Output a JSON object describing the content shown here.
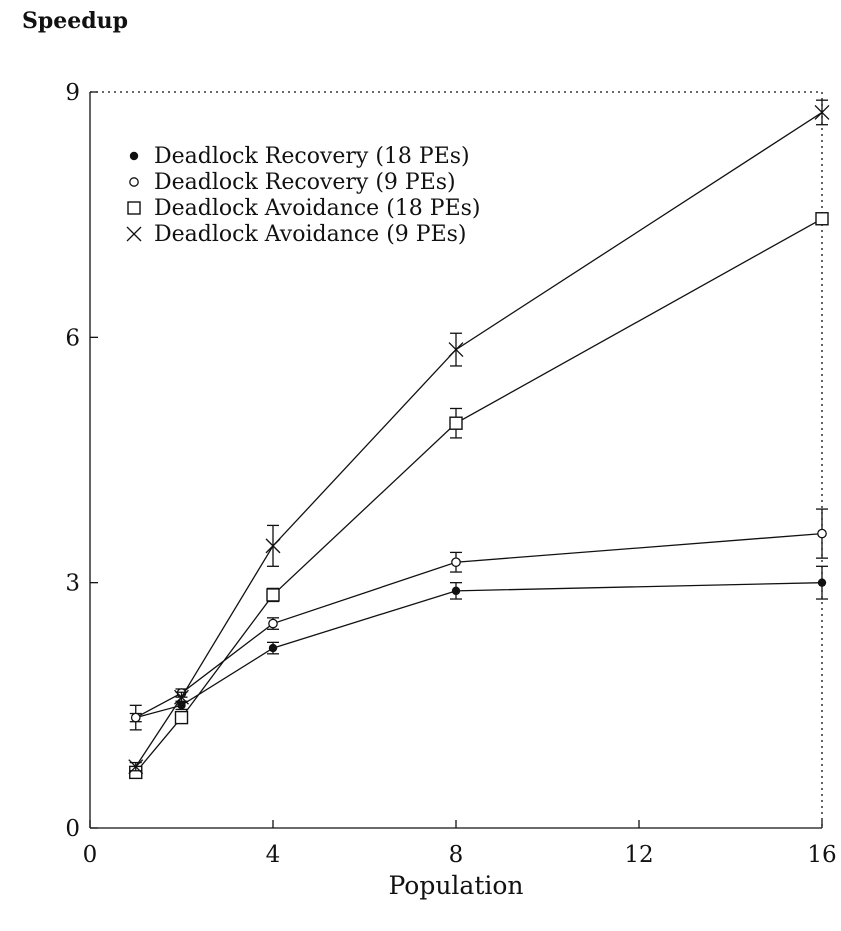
{
  "chart_data": {
    "type": "line",
    "title": "",
    "xlabel": "Population",
    "ylabel": "Speedup",
    "xlim": [
      0,
      16
    ],
    "ylim": [
      0,
      9
    ],
    "xticks": [
      0,
      4,
      8,
      12,
      16
    ],
    "yticks": [
      0,
      3,
      6,
      9
    ],
    "x": [
      1,
      2,
      4,
      8,
      16
    ],
    "legend_position": "top-left",
    "grid": false,
    "series": [
      {
        "name": "Deadlock Recovery (18 PEs)",
        "marker": "filled-circle",
        "x": [
          1,
          2,
          4,
          8,
          16
        ],
        "values": [
          1.35,
          1.5,
          2.2,
          2.9,
          3.0
        ],
        "err": [
          0.05,
          0.05,
          0.07,
          0.1,
          0.2
        ]
      },
      {
        "name": "Deadlock Recovery (9 PEs)",
        "marker": "open-circle",
        "x": [
          1,
          2,
          4,
          8,
          16
        ],
        "values": [
          1.35,
          1.65,
          2.5,
          3.25,
          3.6
        ],
        "err": [
          0.15,
          0.05,
          0.07,
          0.12,
          0.3
        ]
      },
      {
        "name": "Deadlock Avoidance (18 PEs)",
        "marker": "open-square",
        "x": [
          1,
          2,
          4,
          8,
          16
        ],
        "values": [
          0.68,
          1.35,
          2.85,
          4.95,
          7.45
        ],
        "err": [
          0.04,
          0.06,
          0.08,
          0.18,
          0.05
        ]
      },
      {
        "name": "Deadlock Avoidance (9 PEs)",
        "marker": "cross",
        "x": [
          1,
          2,
          4,
          8,
          16
        ],
        "values": [
          0.75,
          1.6,
          3.45,
          5.85,
          8.75
        ],
        "err": [
          0.05,
          0.06,
          0.25,
          0.2,
          0.15
        ]
      }
    ]
  }
}
